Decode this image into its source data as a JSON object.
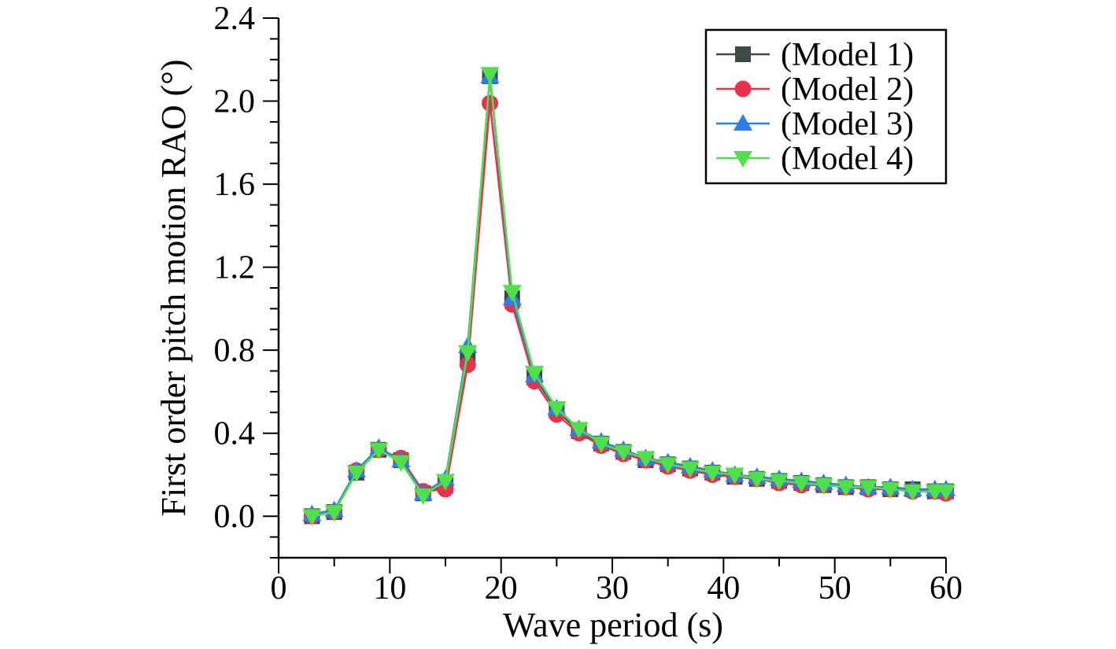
{
  "chart_data": {
    "type": "line",
    "title": "",
    "xlabel": "Wave period (s)",
    "ylabel": "First order pitch motion RAO (°)",
    "xlim": [
      0,
      60
    ],
    "ylim": [
      -0.2,
      2.4
    ],
    "xticks": [
      0,
      10,
      20,
      30,
      40,
      50,
      60
    ],
    "xtick_labels": [
      "0",
      "10",
      "20",
      "30",
      "40",
      "50",
      "60"
    ],
    "yticks": [
      0.0,
      0.4,
      0.8,
      1.2,
      1.6,
      2.0,
      2.4
    ],
    "ytick_labels": [
      "0.0",
      "0.4",
      "0.8",
      "1.2",
      "1.6",
      "2.0",
      "2.4"
    ],
    "grid": false,
    "legend_position": "top-right",
    "x": [
      3,
      5,
      7,
      9,
      11,
      13,
      15,
      17,
      19,
      21,
      23,
      25,
      27,
      29,
      31,
      33,
      35,
      37,
      39,
      41,
      43,
      45,
      47,
      49,
      51,
      53,
      55,
      57,
      59,
      60
    ],
    "series": [
      {
        "name": "(Model 1)",
        "marker": "square",
        "color": "#3d4a4a",
        "values": [
          0.0,
          0.02,
          0.21,
          0.32,
          0.27,
          0.11,
          0.15,
          0.77,
          2.12,
          1.05,
          0.67,
          0.51,
          0.41,
          0.35,
          0.31,
          0.27,
          0.25,
          0.23,
          0.21,
          0.19,
          0.18,
          0.17,
          0.16,
          0.15,
          0.14,
          0.14,
          0.13,
          0.13,
          0.12,
          0.12
        ]
      },
      {
        "name": "(Model 2)",
        "marker": "circle",
        "color": "#e8314a",
        "values": [
          0.0,
          0.02,
          0.22,
          0.32,
          0.28,
          0.12,
          0.13,
          0.73,
          1.99,
          1.02,
          0.65,
          0.49,
          0.4,
          0.34,
          0.3,
          0.27,
          0.24,
          0.22,
          0.2,
          0.19,
          0.18,
          0.16,
          0.15,
          0.15,
          0.14,
          0.13,
          0.13,
          0.12,
          0.12,
          0.11
        ]
      },
      {
        "name": "(Model 3)",
        "marker": "triangle-up",
        "color": "#2f7de8",
        "values": [
          0.01,
          0.03,
          0.22,
          0.33,
          0.27,
          0.11,
          0.18,
          0.82,
          2.12,
          1.05,
          0.68,
          0.52,
          0.42,
          0.36,
          0.32,
          0.28,
          0.26,
          0.24,
          0.22,
          0.2,
          0.19,
          0.18,
          0.17,
          0.16,
          0.15,
          0.14,
          0.14,
          0.13,
          0.13,
          0.13
        ]
      },
      {
        "name": "(Model 4)",
        "marker": "triangle-down",
        "color": "#4fe04a",
        "values": [
          0.0,
          0.02,
          0.21,
          0.32,
          0.26,
          0.1,
          0.17,
          0.79,
          2.13,
          1.08,
          0.69,
          0.52,
          0.42,
          0.35,
          0.31,
          0.28,
          0.25,
          0.23,
          0.21,
          0.2,
          0.18,
          0.17,
          0.16,
          0.15,
          0.14,
          0.14,
          0.13,
          0.12,
          0.12,
          0.12
        ]
      }
    ]
  }
}
